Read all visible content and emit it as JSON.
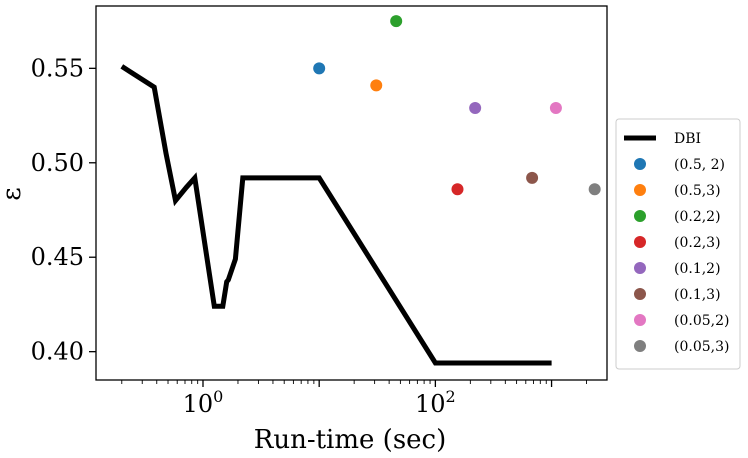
{
  "chart_data": {
    "type": "scatter",
    "xlabel": "Run-time (sec)",
    "ylabel": "ε",
    "xscale": "log",
    "xlim": [
      0.12,
      3000
    ],
    "ylim": [
      0.385,
      0.583
    ],
    "x_ticks": [
      {
        "value": 1,
        "base": "10",
        "exp": "0"
      },
      {
        "value": 100,
        "base": "10",
        "exp": "2"
      }
    ],
    "y_ticks": [
      {
        "value": 0.4,
        "label": "0.40"
      },
      {
        "value": 0.45,
        "label": "0.45"
      },
      {
        "value": 0.5,
        "label": "0.50"
      },
      {
        "value": 0.55,
        "label": "0.55"
      }
    ],
    "grid": false,
    "legend_position": "right",
    "line": {
      "name": "DBI",
      "color": "#000000",
      "x": [
        0.2,
        0.38,
        0.48,
        0.58,
        0.72,
        0.85,
        1.25,
        1.48,
        1.6,
        1.65,
        1.9,
        2.2,
        10,
        100,
        1000
      ],
      "y": [
        0.551,
        0.54,
        0.505,
        0.48,
        0.487,
        0.492,
        0.424,
        0.424,
        0.437,
        0.438,
        0.449,
        0.492,
        0.492,
        0.394,
        0.394
      ]
    },
    "series": [
      {
        "name": "(0.5, 2)",
        "color": "#1f77b4",
        "x": [
          10
        ],
        "y": [
          0.55
        ]
      },
      {
        "name": "(0.5,3)",
        "color": "#ff7f0e",
        "x": [
          31
        ],
        "y": [
          0.541
        ]
      },
      {
        "name": "(0.2,2)",
        "color": "#2ca02c",
        "x": [
          46
        ],
        "y": [
          0.575
        ]
      },
      {
        "name": "(0.2,3)",
        "color": "#d62728",
        "x": [
          155
        ],
        "y": [
          0.486
        ]
      },
      {
        "name": "(0.1,2)",
        "color": "#9467bd",
        "x": [
          220
        ],
        "y": [
          0.529
        ]
      },
      {
        "name": "(0.1,3)",
        "color": "#8c564b",
        "x": [
          680
        ],
        "y": [
          0.492
        ]
      },
      {
        "name": "(0.05,2)",
        "color": "#e377c2",
        "x": [
          1090
        ],
        "y": [
          0.529
        ]
      },
      {
        "name": "(0.05,3)",
        "color": "#7f7f7f",
        "x": [
          2350
        ],
        "y": [
          0.486
        ]
      }
    ]
  }
}
